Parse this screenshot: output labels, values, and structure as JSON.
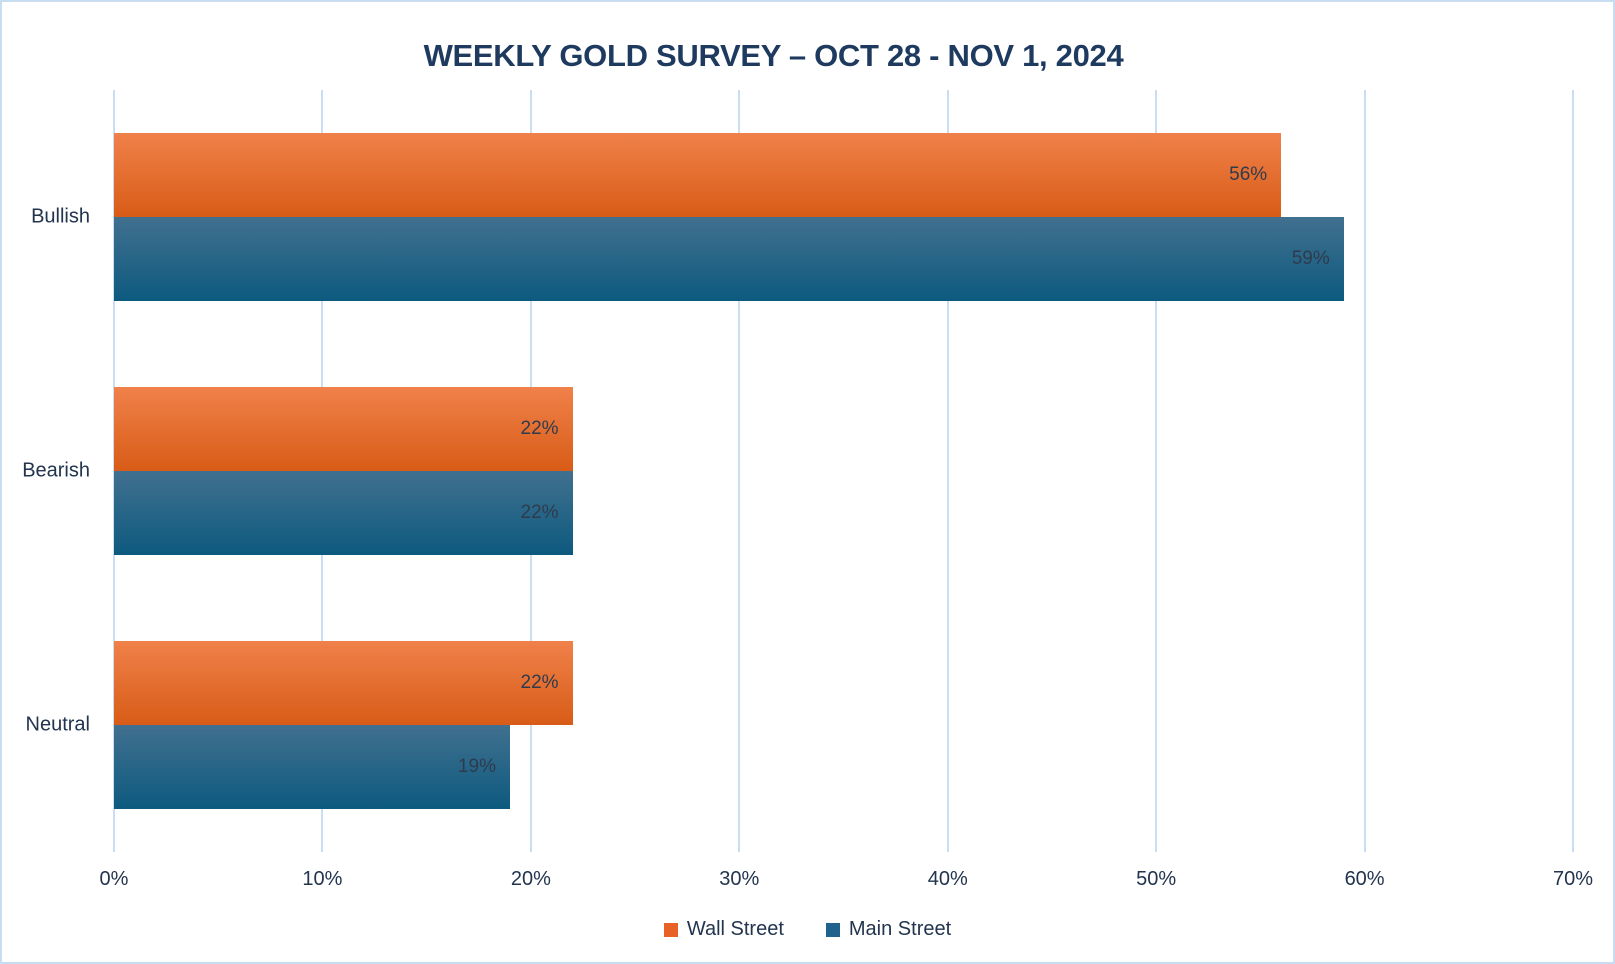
{
  "chart_data": {
    "type": "bar",
    "orientation": "horizontal",
    "title": "WEEKLY GOLD SURVEY – OCT 28 - NOV 1, 2024",
    "categories": [
      "Bullish",
      "Bearish",
      "Neutral"
    ],
    "series": [
      {
        "name": "Wall Street",
        "values": [
          56,
          22,
          22
        ],
        "value_labels": [
          "56%",
          "22%",
          "22%"
        ],
        "color": "#E86225",
        "gradient_top": "#F0814A",
        "gradient_bottom": "#D85C17"
      },
      {
        "name": "Main Street",
        "values": [
          59,
          22,
          19
        ],
        "value_labels": [
          "59%",
          "22%",
          "19%"
        ],
        "color": "#1F628C",
        "gradient_top": "#41708F",
        "gradient_bottom": "#0D5A7F"
      }
    ],
    "x_axis": {
      "min": 0,
      "max": 70,
      "step": 10,
      "tick_labels": [
        "0%",
        "10%",
        "20%",
        "30%",
        "40%",
        "50%",
        "60%",
        "70%"
      ]
    },
    "grid": true,
    "legend_position": "bottom"
  },
  "colors": {
    "frame_border": "#C9DDF1",
    "gridline": "#C9DEF2",
    "title_text": "#1E3A5F",
    "axis_text": "#22344E",
    "bar_label_text": "#2F3B4D",
    "background": "#FFFFFF"
  }
}
